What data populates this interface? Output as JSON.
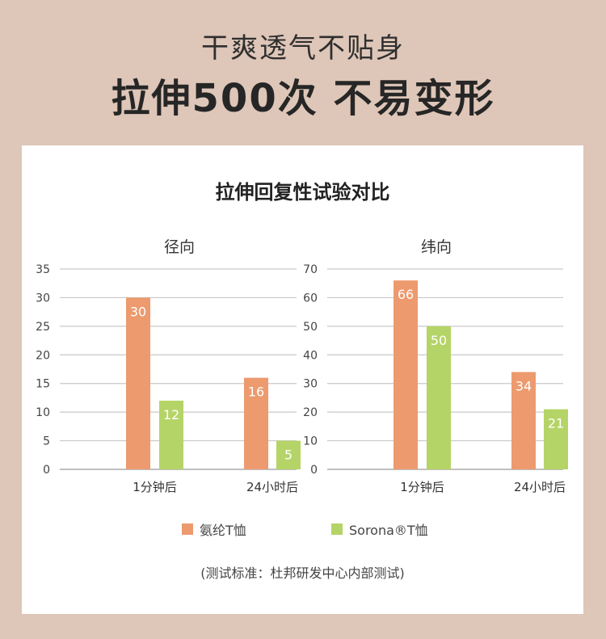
{
  "header": {
    "line1": "干爽透气不贴身",
    "line2": "拉伸500次  不易变形"
  },
  "chart_title": "拉伸回复性试验对比",
  "legend": [
    {
      "label": "氨纶T恤",
      "color": "#ec9a6e"
    },
    {
      "label": "Sorona®T恤",
      "color": "#b5d467"
    }
  ],
  "note": "(测试标准：杜邦研发中心内部测试)",
  "chart_data": [
    {
      "type": "bar",
      "title": "径向",
      "categories": [
        "1分钟后",
        "24小时后"
      ],
      "series": [
        {
          "name": "氨纶T恤",
          "values": [
            30,
            16
          ]
        },
        {
          "name": "Sorona®T恤",
          "values": [
            12,
            5
          ]
        }
      ],
      "ylim": [
        0,
        35
      ],
      "yticks": [
        0,
        5,
        10,
        15,
        20,
        25,
        30,
        35
      ],
      "grid": true,
      "legend_position": "bottom"
    },
    {
      "type": "bar",
      "title": "纬向",
      "categories": [
        "1分钟后",
        "24小时后"
      ],
      "series": [
        {
          "name": "氨纶T恤",
          "values": [
            66,
            34
          ]
        },
        {
          "name": "Sorona®T恤",
          "values": [
            50,
            21
          ]
        }
      ],
      "ylim": [
        0,
        70
      ],
      "yticks": [
        0,
        10,
        20,
        30,
        40,
        50,
        60,
        70
      ],
      "grid": true,
      "legend_position": "bottom"
    }
  ]
}
